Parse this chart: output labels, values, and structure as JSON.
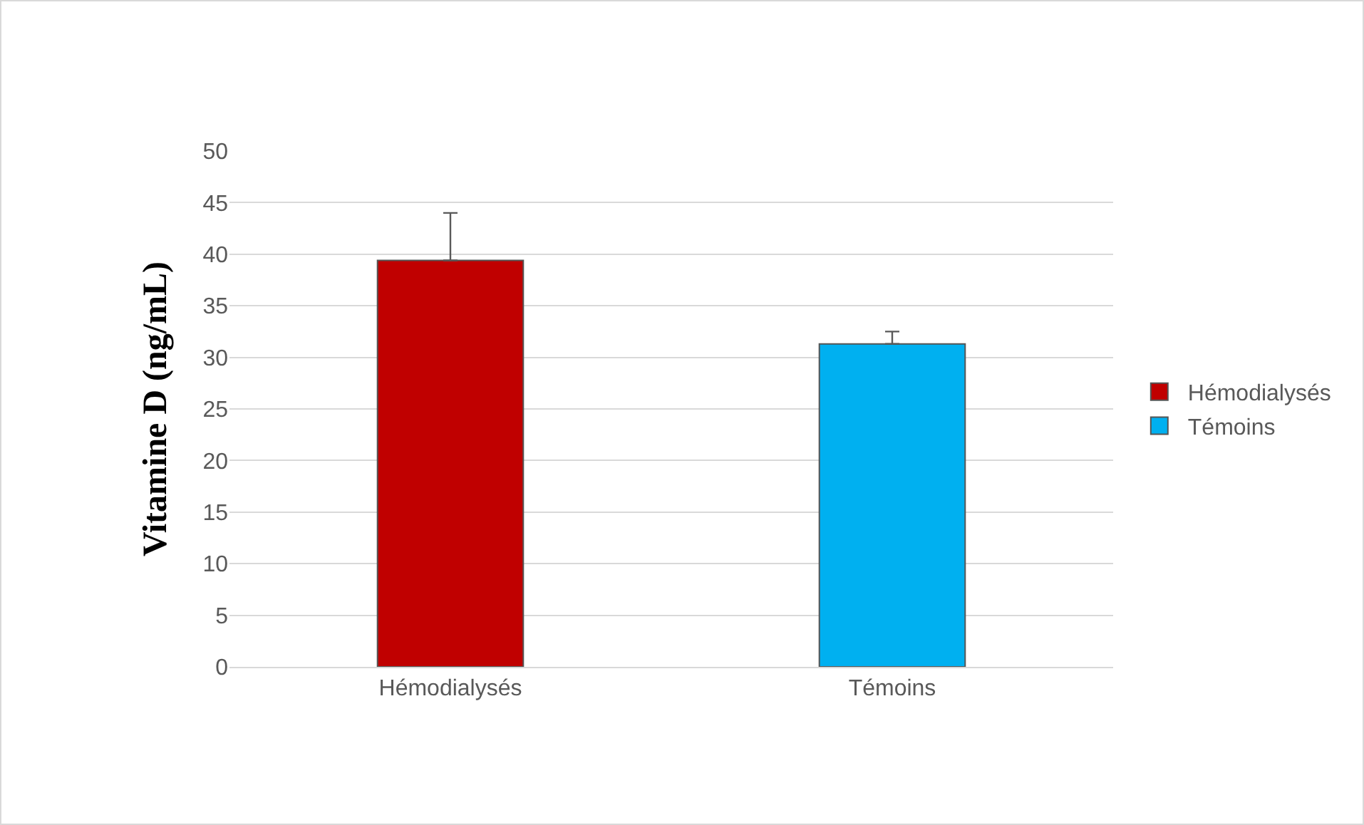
{
  "chart_data": {
    "type": "bar",
    "ylabel": "Vitamine D (ng/mL)",
    "categories": [
      "Hémodialysés",
      "Témoins"
    ],
    "series": [
      {
        "name": "Hémodialysés",
        "color": "#c00000",
        "values": [
          39.4,
          null
        ],
        "errors": [
          [
            39.4,
            44
          ],
          null
        ]
      },
      {
        "name": "Témoins",
        "color": "#00b0f0",
        "values": [
          null,
          31.3
        ],
        "errors": [
          null,
          [
            31.3,
            32.5
          ]
        ]
      }
    ],
    "ylim": [
      0,
      50
    ],
    "yticks": [
      0,
      5,
      10,
      15,
      20,
      25,
      30,
      35,
      40,
      45,
      50
    ],
    "grid": "y",
    "legend": "right"
  }
}
